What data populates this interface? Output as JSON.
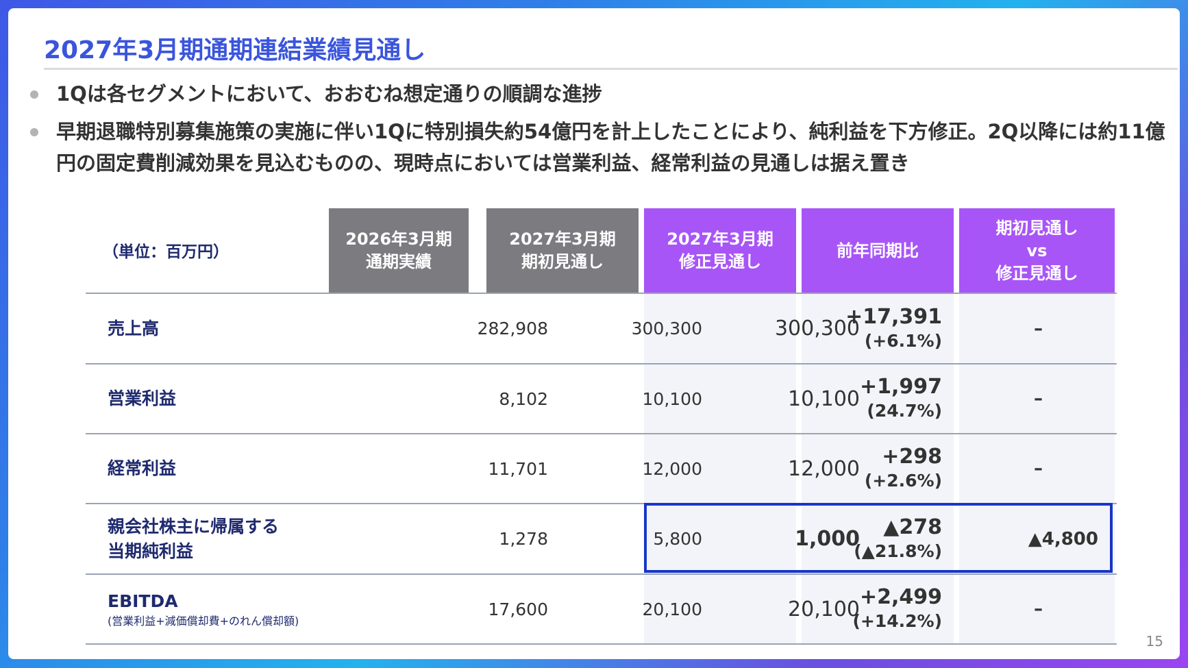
{
  "slide": {
    "title": "2027年3月期通期連結業績見通し",
    "bullets": [
      "1Qは各セグメントにおいて、おおむね想定通りの順調な進捗",
      "早期退職特別募集施策の実施に伴い1Qに特別損失約54億円を計上したことにより、純利益を下方修正。2Q以降には約11億円の固定費削減効果を見込むものの、現時点においては営業利益、経常利益の見通しは据え置き"
    ],
    "page_number": "15"
  },
  "table": {
    "unit_label": "（単位：百万円）",
    "headers": [
      {
        "line1": "2026年3月期",
        "line2": "通期実績"
      },
      {
        "line1": "2027年3月期",
        "line2": "期初見通し"
      },
      {
        "line1": "2027年3月期",
        "line2": "修正見通し"
      },
      {
        "line1": "前年同期比",
        "line2": ""
      },
      {
        "line1": "期初見通し",
        "line2": "vs",
        "line3": "修正見通し"
      }
    ],
    "rows": [
      {
        "label": "売上高",
        "sublabel": "",
        "actual_2026": "282,908",
        "initial_2027": "300,300",
        "revised_2027": "300,300",
        "yoy_abs": "+17,391",
        "yoy_pct": "(+6.1%)",
        "vs_initial": "–"
      },
      {
        "label": "営業利益",
        "sublabel": "",
        "actual_2026": "8,102",
        "initial_2027": "10,100",
        "revised_2027": "10,100",
        "yoy_abs": "+1,997",
        "yoy_pct": "(24.7%)",
        "vs_initial": "–"
      },
      {
        "label": "経常利益",
        "sublabel": "",
        "actual_2026": "11,701",
        "initial_2027": "12,000",
        "revised_2027": "12,000",
        "yoy_abs": "+298",
        "yoy_pct": "(+2.6%)",
        "vs_initial": "–"
      },
      {
        "label": "親会社株主に帰属する",
        "label2": "当期純利益",
        "sublabel": "",
        "actual_2026": "1,278",
        "initial_2027": "5,800",
        "revised_2027": "1,000",
        "yoy_abs": "▲278",
        "yoy_pct": "(▲21.8%)",
        "vs_initial": "▲4,800"
      },
      {
        "label": "EBITDA",
        "sublabel": "(営業利益+減価償却費+のれん償却額)",
        "actual_2026": "17,600",
        "initial_2027": "20,100",
        "revised_2027": "20,100",
        "yoy_abs": "+2,499",
        "yoy_pct": "(+14.2%)",
        "vs_initial": "–"
      }
    ]
  },
  "colors": {
    "title": "#3a55dc",
    "header_gray": "#7b7b80",
    "header_purple": "#a855f7",
    "highlight_border": "#1736c8",
    "row_label": "#1f2a6e"
  }
}
